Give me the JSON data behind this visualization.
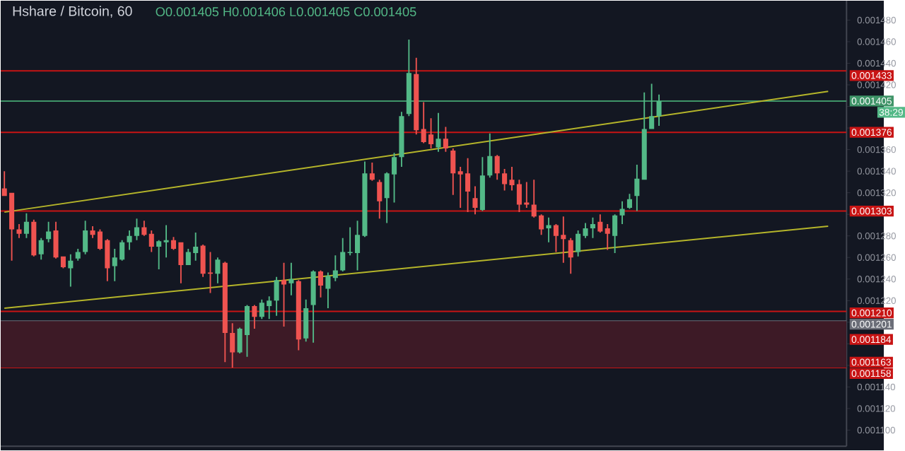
{
  "chart_data": {
    "type": "candlestick",
    "title": "Hshare / Bitcoin, 60",
    "subtitle": "O0.001405 H0.001406 L0.001405 C0.001405",
    "categories": [
      null,
      null,
      null,
      null,
      null,
      null,
      null,
      null,
      null,
      null,
      null,
      null,
      null,
      null,
      null,
      null,
      null,
      null,
      null,
      null,
      null,
      null,
      null,
      null,
      null,
      null,
      null,
      null,
      null,
      null,
      null,
      null,
      null,
      null,
      null,
      null,
      null,
      null,
      null,
      null,
      null,
      null,
      null,
      null,
      null,
      null,
      null,
      null,
      null,
      null,
      null,
      null,
      null,
      null,
      null,
      null,
      null,
      null,
      null,
      null,
      null,
      null,
      null,
      null,
      null,
      null,
      null,
      null,
      null,
      null,
      null,
      null,
      null,
      null,
      null,
      null,
      null,
      null,
      null,
      null,
      null,
      null,
      null,
      null,
      null,
      null,
      null,
      null,
      null,
      null,
      null,
      null,
      null,
      null,
      null,
      null,
      null,
      null,
      null,
      null,
      null,
      null,
      null,
      null,
      null,
      null,
      null,
      null,
      null,
      null,
      null,
      null,
      null,
      null,
      null
    ],
    "ohlc": [
      [
        0.001324,
        0.00134,
        0.001317,
        0.001317
      ],
      [
        0.00132,
        0.00132,
        0.001257,
        0.001286
      ],
      [
        0.001286,
        0.001291,
        0.001278,
        0.001282
      ],
      [
        0.001282,
        0.001301,
        0.001278,
        0.001293
      ],
      [
        0.001293,
        0.001295,
        0.001261,
        0.001262
      ],
      [
        0.001263,
        0.001278,
        0.001258,
        0.001276
      ],
      [
        0.001277,
        0.001293,
        0.001274,
        0.001284
      ],
      [
        0.001285,
        0.001293,
        0.001259,
        0.00126
      ],
      [
        0.001261,
        0.001261,
        0.00125,
        0.001251
      ],
      [
        0.00125,
        0.001263,
        0.001233,
        0.001257
      ],
      [
        0.001259,
        0.001268,
        0.001257,
        0.001265
      ],
      [
        0.001265,
        0.001294,
        0.001263,
        0.001285
      ],
      [
        0.001285,
        0.001289,
        0.001278,
        0.001281
      ],
      [
        0.001284,
        0.001286,
        0.001267,
        0.001268
      ],
      [
        0.001276,
        0.001277,
        0.001238,
        0.00125
      ],
      [
        0.001252,
        0.001268,
        0.001238,
        0.00126
      ],
      [
        0.001258,
        0.001276,
        0.001257,
        0.001274
      ],
      [
        0.001274,
        0.001285,
        0.001267,
        0.00128
      ],
      [
        0.00128,
        0.001296,
        0.001276,
        0.001288
      ],
      [
        0.001288,
        0.001294,
        0.00128,
        0.001281
      ],
      [
        0.001282,
        0.001285,
        0.001265,
        0.00127
      ],
      [
        0.00127,
        0.001276,
        0.001249,
        0.001275
      ],
      [
        0.001274,
        0.00129,
        0.00126,
        0.001276
      ],
      [
        0.001276,
        0.001279,
        0.001267,
        0.001268
      ],
      [
        0.001274,
        0.001274,
        0.001236,
        0.001253
      ],
      [
        0.001253,
        0.001268,
        0.001253,
        0.001265
      ],
      [
        0.001264,
        0.001283,
        0.001257,
        0.00127
      ],
      [
        0.001271,
        0.001272,
        0.001242,
        0.001245
      ],
      [
        0.001246,
        0.001265,
        0.001227,
        0.001245
      ],
      [
        0.001245,
        0.00126,
        0.001236,
        0.001258
      ],
      [
        0.001255,
        0.001256,
        0.001163,
        0.00119
      ],
      [
        0.00119,
        0.001199,
        0.001158,
        0.001172
      ],
      [
        0.001172,
        0.001195,
        0.001171,
        0.001194
      ],
      [
        0.001188,
        0.001216,
        0.001168,
        0.001215
      ],
      [
        0.001215,
        0.001216,
        0.001194,
        0.001205
      ],
      [
        0.001205,
        0.001221,
        0.001203,
        0.001218
      ],
      [
        0.001215,
        0.001224,
        0.001203,
        0.00122
      ],
      [
        0.00122,
        0.001242,
        0.001206,
        0.001239
      ],
      [
        0.001239,
        0.001255,
        0.001196,
        0.001235
      ],
      [
        0.001236,
        0.001255,
        0.001225,
        0.00124
      ],
      [
        0.001238,
        0.001239,
        0.001174,
        0.001184
      ],
      [
        0.001185,
        0.001221,
        0.001182,
        0.001213
      ],
      [
        0.001216,
        0.001248,
        0.001181,
        0.001247
      ],
      [
        0.001247,
        0.001248,
        0.001223,
        0.001234
      ],
      [
        0.001231,
        0.001246,
        0.001213,
        0.001243
      ],
      [
        0.001241,
        0.001262,
        0.001238,
        0.001248
      ],
      [
        0.001248,
        0.001278,
        0.001247,
        0.001265
      ],
      [
        0.001264,
        0.001288,
        0.001262,
        0.001265
      ],
      [
        0.001264,
        0.001294,
        0.001248,
        0.001281
      ],
      [
        0.00128,
        0.001349,
        0.001279,
        0.001338
      ],
      [
        0.001338,
        0.001348,
        0.001331,
        0.001332
      ],
      [
        0.00133,
        0.001332,
        0.001296,
        0.001312
      ],
      [
        0.001315,
        0.001339,
        0.001292,
        0.001338
      ],
      [
        0.001337,
        0.001357,
        0.001311,
        0.001353
      ],
      [
        0.001353,
        0.001395,
        0.001344,
        0.001391
      ],
      [
        0.001393,
        0.001462,
        0.001391,
        0.001431
      ],
      [
        0.00143,
        0.001445,
        0.001374,
        0.001378
      ],
      [
        0.001379,
        0.001404,
        0.001366,
        0.001367
      ],
      [
        0.001374,
        0.001389,
        0.001361,
        0.001365
      ],
      [
        0.001362,
        0.001394,
        0.001358,
        0.00137
      ],
      [
        0.00137,
        0.001381,
        0.001358,
        0.001361
      ],
      [
        0.001359,
        0.001361,
        0.001318,
        0.001338
      ],
      [
        0.00134,
        0.001344,
        0.001306,
        0.001337
      ],
      [
        0.001338,
        0.001352,
        0.001302,
        0.001321
      ],
      [
        0.001315,
        0.001326,
        0.0013,
        0.001306
      ],
      [
        0.001304,
        0.001353,
        0.001303,
        0.001336
      ],
      [
        0.001336,
        0.001375,
        0.001334,
        0.001354
      ],
      [
        0.001354,
        0.001355,
        0.001332,
        0.001338
      ],
      [
        0.001338,
        0.001342,
        0.001322,
        0.001328
      ],
      [
        0.001332,
        0.001344,
        0.001322,
        0.001327
      ],
      [
        0.001328,
        0.001332,
        0.001302,
        0.001309
      ],
      [
        0.001311,
        0.00133,
        0.001306,
        0.001309
      ],
      [
        0.001309,
        0.001332,
        0.001297,
        0.001298
      ],
      [
        0.001299,
        0.0013,
        0.001281,
        0.001286
      ],
      [
        0.001287,
        0.001297,
        0.001274,
        0.00129
      ],
      [
        0.00129,
        0.001291,
        0.001265,
        0.00128
      ],
      [
        0.001281,
        0.001298,
        0.001255,
        0.001277
      ],
      [
        0.001276,
        0.001278,
        0.001245,
        0.00126
      ],
      [
        0.001265,
        0.001285,
        0.001261,
        0.001282
      ],
      [
        0.00128,
        0.001292,
        0.001278,
        0.001287
      ],
      [
        0.001287,
        0.001297,
        0.001278,
        0.001291
      ],
      [
        0.001293,
        0.0013,
        0.001283,
        0.001284
      ],
      [
        0.001287,
        0.001291,
        0.001267,
        0.001282
      ],
      [
        0.00128,
        0.0013,
        0.001264,
        0.001299
      ],
      [
        0.001299,
        0.001312,
        0.001291,
        0.001305
      ],
      [
        0.001306,
        0.001319,
        0.001305,
        0.001314
      ],
      [
        0.001317,
        0.001346,
        0.001303,
        0.001333
      ],
      [
        0.001332,
        0.001413,
        0.001332,
        0.001379
      ],
      [
        0.001379,
        0.001421,
        0.001379,
        0.001391
      ],
      [
        0.001391,
        0.001411,
        0.001382,
        0.001405
      ],
      null,
      null,
      null,
      null,
      null,
      null,
      null,
      null,
      null,
      null,
      null,
      null,
      null,
      null,
      null,
      null,
      null,
      null,
      null,
      null,
      null,
      null,
      null,
      null,
      null
    ],
    "colors": [
      "#ef5350",
      "#ef5350",
      "#ef5350",
      "#53b987",
      "#ef5350",
      "#53b987",
      "#53b987",
      "#ef5350",
      "#ef5350",
      "#53b987",
      "#53b987",
      "#53b987",
      "#ef5350",
      "#ef5350",
      "#ef5350",
      "#53b987",
      "#53b987",
      "#53b987",
      "#53b987",
      "#ef5350",
      "#ef5350",
      "#53b987",
      "#53b987",
      "#ef5350",
      "#ef5350",
      "#53b987",
      "#53b987",
      "#ef5350",
      "#ef5350",
      "#53b987",
      "#ef5350",
      "#ef5350",
      "#53b987",
      "#53b987",
      "#ef5350",
      "#53b987",
      "#53b987",
      "#53b987",
      "#ef5350",
      "#53b987",
      "#ef5350",
      "#53b987",
      "#53b987",
      "#ef5350",
      "#53b987",
      "#53b987",
      "#53b987",
      "#53b987",
      "#53b987",
      "#53b987",
      "#ef5350",
      "#ef5350",
      "#53b987",
      "#53b987",
      "#53b987",
      "#53b987",
      "#ef5350",
      "#ef5350",
      "#ef5350",
      "#53b987",
      "#ef5350",
      "#ef5350",
      "#ef5350",
      "#ef5350",
      "#ef5350",
      "#53b987",
      "#53b987",
      "#ef5350",
      "#ef5350",
      "#ef5350",
      "#ef5350",
      "#ef5350",
      "#ef5350",
      "#ef5350",
      "#53b987",
      "#ef5350",
      "#ef5350",
      "#ef5350",
      "#53b987",
      "#53b987",
      "#53b987",
      "#ef5350",
      "#ef5350",
      "#53b987",
      "#53b987",
      "#53b987",
      "#53b987",
      "#53b987",
      "#53b987",
      "#53b987",
      null,
      null,
      null,
      null,
      null,
      null,
      null,
      null,
      null,
      null,
      null,
      null,
      null,
      null,
      null,
      null,
      null,
      null,
      null,
      null,
      null,
      null,
      null,
      null,
      null
    ],
    "series": [
      {
        "type": "line",
        "values": [
          0.001302,
          null,
          null,
          null,
          null,
          null,
          null,
          null,
          null,
          null,
          null,
          null,
          null,
          null,
          null,
          null,
          null,
          null,
          null,
          null,
          null,
          null,
          null,
          null,
          null,
          null,
          null,
          null,
          null,
          null,
          null,
          null,
          null,
          null,
          null,
          null,
          null,
          null,
          null,
          null,
          null,
          null,
          null,
          null,
          null,
          null,
          null,
          null,
          null,
          null,
          null,
          null,
          null,
          null,
          null,
          null,
          null,
          null,
          null,
          null,
          null,
          null,
          null,
          null,
          null,
          null,
          null,
          null,
          null,
          null,
          null,
          null,
          null,
          null,
          null,
          null,
          null,
          null,
          null,
          null,
          null,
          null,
          null,
          null,
          null,
          null,
          null,
          null,
          null,
          null,
          null,
          null,
          null,
          null,
          null,
          null,
          null,
          null,
          null,
          null,
          null,
          null,
          null,
          null,
          null,
          null,
          null,
          null,
          null,
          null,
          null,
          null,
          0.001414,
          null,
          null
        ],
        "color": "#b5b52a"
      },
      {
        "type": "line",
        "values": [
          0.001213,
          null,
          null,
          null,
          null,
          null,
          null,
          null,
          null,
          null,
          null,
          null,
          null,
          null,
          null,
          null,
          null,
          null,
          null,
          null,
          null,
          null,
          null,
          null,
          null,
          null,
          null,
          null,
          null,
          null,
          null,
          null,
          null,
          null,
          null,
          null,
          null,
          null,
          null,
          null,
          null,
          null,
          null,
          null,
          null,
          null,
          null,
          null,
          null,
          null,
          null,
          null,
          null,
          null,
          null,
          null,
          null,
          null,
          null,
          null,
          null,
          null,
          null,
          null,
          null,
          null,
          null,
          null,
          null,
          null,
          null,
          null,
          null,
          null,
          null,
          null,
          null,
          null,
          null,
          null,
          null,
          null,
          null,
          null,
          null,
          null,
          null,
          null,
          null,
          null,
          null,
          null,
          null,
          null,
          null,
          null,
          null,
          null,
          null,
          null,
          null,
          null,
          null,
          null,
          null,
          null,
          null,
          null,
          null,
          null,
          null,
          null,
          0.001289,
          null,
          null
        ],
        "color": "#b5b52a"
      }
    ],
    "ylim": [
      0.001085,
      0.001498
    ],
    "yticks": [
      {
        "value": 0.0011,
        "label": "0.001100"
      },
      {
        "value": 0.00112,
        "label": "0.001120"
      },
      {
        "value": 0.00114,
        "label": "0.001140"
      },
      {
        "value": 0.00116,
        "label": null
      },
      {
        "value": 0.00118,
        "label": null
      },
      {
        "value": 0.0012,
        "label": null
      },
      {
        "value": 0.00122,
        "label": "0.001220"
      },
      {
        "value": 0.00124,
        "label": "0.001240"
      },
      {
        "value": 0.00126,
        "label": "0.001260"
      },
      {
        "value": 0.00128,
        "label": "0.001280"
      },
      {
        "value": 0.0013,
        "label": null
      },
      {
        "value": 0.00132,
        "label": "0.001320"
      },
      {
        "value": 0.00134,
        "label": "0.001340"
      },
      {
        "value": 0.00136,
        "label": "0.001360"
      },
      {
        "value": 0.00138,
        "label": null
      },
      {
        "value": 0.0014,
        "label": null
      },
      {
        "value": 0.00142,
        "label": "0.001420"
      },
      {
        "value": 0.00144,
        "label": "0.001440"
      },
      {
        "value": 0.00146,
        "label": "0.001460"
      },
      {
        "value": 0.00148,
        "label": "0.001480"
      }
    ],
    "tick_labels": "y",
    "bands": [
      {
        "axis": "y",
        "from": 0.001158,
        "to": 0.001201,
        "color": "#3d1a26"
      }
    ],
    "ref_lines": [
      {
        "axis": "y",
        "value": 0.001433,
        "label": "0.001433",
        "color": "#c81414"
      },
      {
        "axis": "y",
        "value": 0.001405,
        "label": "0.001405",
        "color": "#3f9468"
      },
      {
        "axis": "y",
        "value": 0.001376,
        "label": "0.001376",
        "color": "#c81414"
      },
      {
        "axis": "y",
        "value": 0.001303,
        "label": "0.001303",
        "color": "#c81414"
      },
      {
        "axis": "y",
        "value": 0.00121,
        "label": "0.001210",
        "color": "#c81414"
      },
      {
        "axis": "y",
        "value": 0.001201,
        "label": "0.001201",
        "color": "#6b6e78"
      },
      {
        "axis": "y",
        "value": 0.001184,
        "label": "0.001184",
        "color": "#c81414"
      },
      {
        "axis": "y",
        "value": 0.001163,
        "label": "0.001163",
        "color": "#c81414"
      },
      {
        "axis": "y",
        "value": 0.001158,
        "label": "0.001158",
        "color": "#c81414"
      }
    ],
    "annotations": [
      "38:29"
    ]
  }
}
